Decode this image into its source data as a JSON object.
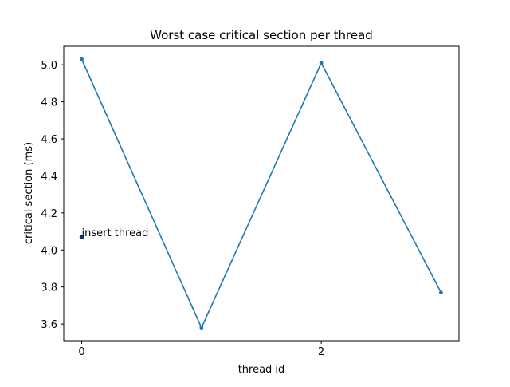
{
  "chart_data": {
    "type": "line",
    "title": "Worst case critical section per thread",
    "xlabel": "thread id",
    "ylabel": "critical section (ms)",
    "xlim": [
      -0.15,
      3.15
    ],
    "ylim": [
      3.51,
      5.1
    ],
    "xticks": [
      0,
      2
    ],
    "yticks": [
      3.6,
      3.8,
      4.0,
      4.2,
      4.4,
      4.6,
      4.8,
      5.0
    ],
    "xtick_labels": [
      "0",
      "2"
    ],
    "ytick_labels": [
      "3.6",
      "3.8",
      "4.0",
      "4.2",
      "4.4",
      "4.6",
      "4.8",
      "5.0"
    ],
    "grid": false,
    "series": [
      {
        "x": [
          0,
          1,
          2,
          3
        ],
        "values": [
          5.03,
          3.58,
          5.01,
          3.77
        ],
        "color": "#1f77b4"
      }
    ],
    "annotations": [
      {
        "text": "insert thread",
        "x": 0,
        "y": 4.07,
        "color": "#08306b"
      }
    ]
  }
}
